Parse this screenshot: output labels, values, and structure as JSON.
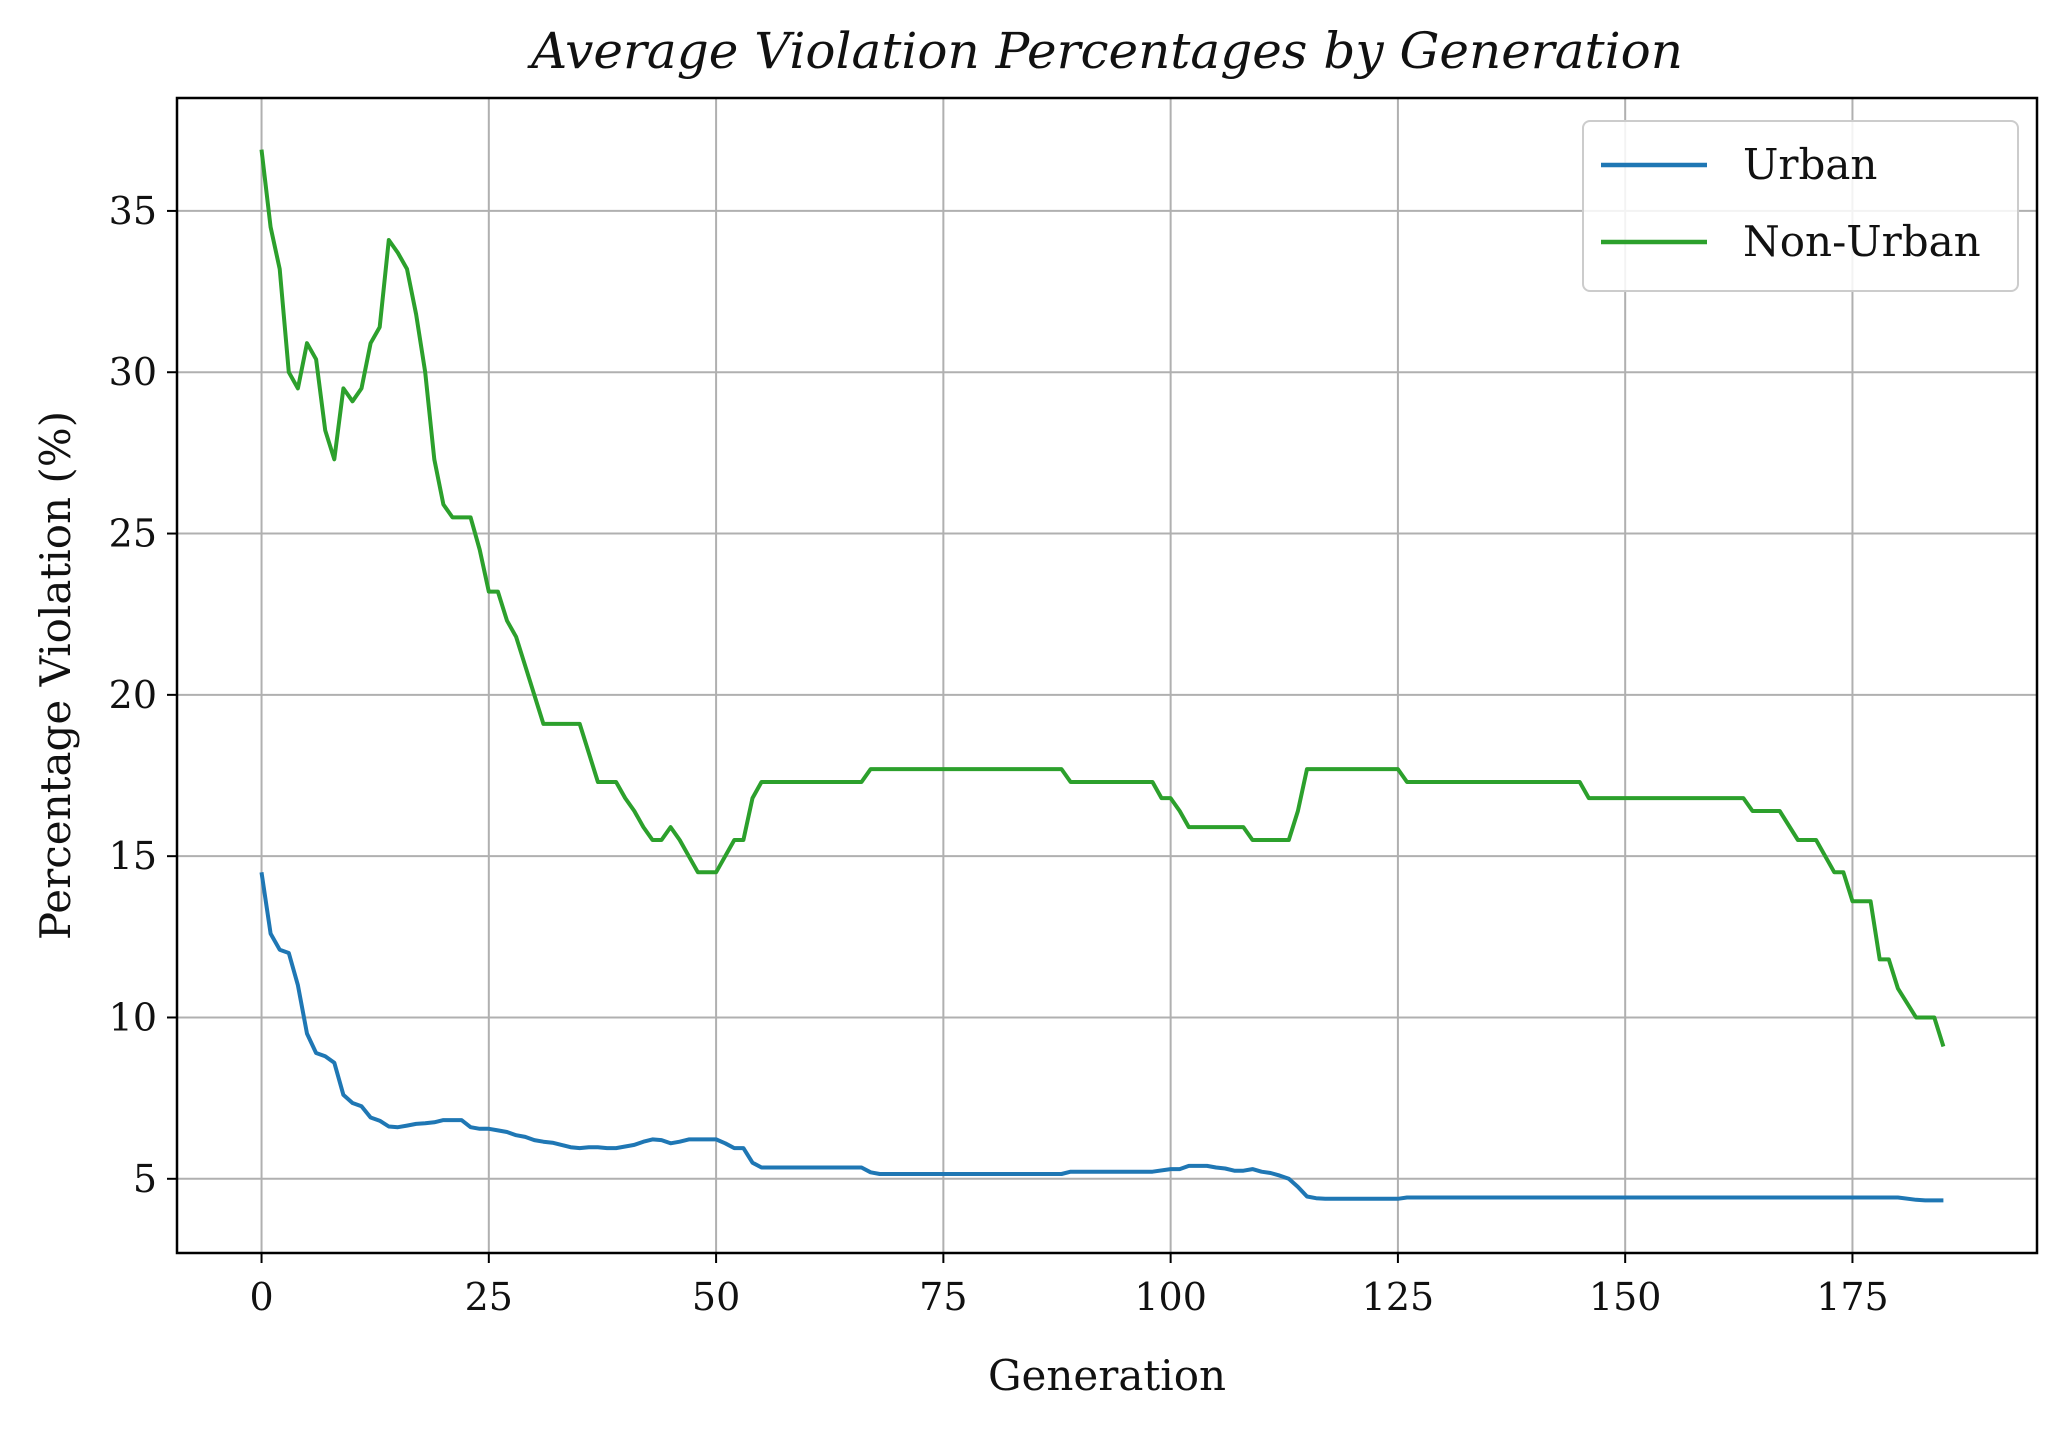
{
  "chart_data": {
    "type": "line",
    "title": "Average Violation Percentages by Generation",
    "xlabel": "Generation",
    "ylabel": "Percentage Violation (%)",
    "xlim": [
      -9.3,
      195.3
    ],
    "ylim": [
      2.7,
      38.5
    ],
    "xticks": [
      0,
      25,
      50,
      75,
      100,
      125,
      150,
      175
    ],
    "yticks": [
      5,
      10,
      15,
      20,
      25,
      30,
      35
    ],
    "grid": true,
    "legend_position": "top-right",
    "series": [
      {
        "name": "Urban",
        "color": "#1f77b4",
        "points": [
          [
            0,
            14.5
          ],
          [
            1,
            12.6
          ],
          [
            2,
            12.1
          ],
          [
            3,
            12.0
          ],
          [
            4,
            11.0
          ],
          [
            5,
            9.5
          ],
          [
            6,
            8.9
          ],
          [
            7,
            8.8
          ],
          [
            8,
            8.6
          ],
          [
            9,
            7.6
          ],
          [
            10,
            7.35
          ],
          [
            11,
            7.25
          ],
          [
            12,
            6.9
          ],
          [
            13,
            6.8
          ],
          [
            14,
            6.62
          ],
          [
            15,
            6.6
          ],
          [
            16,
            6.65
          ],
          [
            17,
            6.7
          ],
          [
            18,
            6.72
          ],
          [
            19,
            6.75
          ],
          [
            20,
            6.82
          ],
          [
            21,
            6.82
          ],
          [
            22,
            6.82
          ],
          [
            23,
            6.6
          ],
          [
            24,
            6.55
          ],
          [
            25,
            6.55
          ],
          [
            26,
            6.5
          ],
          [
            27,
            6.45
          ],
          [
            28,
            6.35
          ],
          [
            29,
            6.3
          ],
          [
            30,
            6.2
          ],
          [
            31,
            6.15
          ],
          [
            32,
            6.12
          ],
          [
            33,
            6.05
          ],
          [
            34,
            5.98
          ],
          [
            35,
            5.95
          ],
          [
            36,
            5.98
          ],
          [
            37,
            5.98
          ],
          [
            38,
            5.95
          ],
          [
            39,
            5.95
          ],
          [
            40,
            6.0
          ],
          [
            41,
            6.05
          ],
          [
            42,
            6.15
          ],
          [
            43,
            6.22
          ],
          [
            44,
            6.2
          ],
          [
            45,
            6.1
          ],
          [
            46,
            6.15
          ],
          [
            47,
            6.22
          ],
          [
            48,
            6.22
          ],
          [
            49,
            6.22
          ],
          [
            50,
            6.22
          ],
          [
            51,
            6.1
          ],
          [
            52,
            5.95
          ],
          [
            53,
            5.95
          ],
          [
            54,
            5.5
          ],
          [
            55,
            5.35
          ],
          [
            60,
            5.35
          ],
          [
            66,
            5.35
          ],
          [
            67,
            5.2
          ],
          [
            68,
            5.15
          ],
          [
            80,
            5.15
          ],
          [
            88,
            5.15
          ],
          [
            89,
            5.22
          ],
          [
            98,
            5.22
          ],
          [
            100,
            5.3
          ],
          [
            101,
            5.3
          ],
          [
            102,
            5.4
          ],
          [
            104,
            5.4
          ],
          [
            105,
            5.35
          ],
          [
            106,
            5.32
          ],
          [
            107,
            5.25
          ],
          [
            108,
            5.25
          ],
          [
            109,
            5.3
          ],
          [
            110,
            5.22
          ],
          [
            111,
            5.18
          ],
          [
            112,
            5.1
          ],
          [
            113,
            5.0
          ],
          [
            114,
            4.75
          ],
          [
            115,
            4.45
          ],
          [
            116,
            4.4
          ],
          [
            117,
            4.38
          ],
          [
            120,
            4.38
          ],
          [
            125,
            4.38
          ],
          [
            126,
            4.42
          ],
          [
            140,
            4.42
          ],
          [
            160,
            4.42
          ],
          [
            180,
            4.42
          ],
          [
            182,
            4.35
          ],
          [
            183,
            4.33
          ],
          [
            185,
            4.33
          ]
        ]
      },
      {
        "name": "Non-Urban",
        "color": "#2ca02c",
        "points": [
          [
            0,
            36.9
          ],
          [
            1,
            34.5
          ],
          [
            2,
            33.2
          ],
          [
            3,
            30.0
          ],
          [
            4,
            29.5
          ],
          [
            5,
            30.9
          ],
          [
            6,
            30.4
          ],
          [
            7,
            28.2
          ],
          [
            8,
            27.3
          ],
          [
            9,
            29.5
          ],
          [
            10,
            29.1
          ],
          [
            11,
            29.5
          ],
          [
            12,
            30.9
          ],
          [
            13,
            31.4
          ],
          [
            14,
            34.1
          ],
          [
            15,
            33.7
          ],
          [
            16,
            33.2
          ],
          [
            17,
            31.8
          ],
          [
            18,
            30.0
          ],
          [
            19,
            27.3
          ],
          [
            20,
            25.9
          ],
          [
            21,
            25.5
          ],
          [
            22,
            25.5
          ],
          [
            23,
            25.5
          ],
          [
            24,
            24.5
          ],
          [
            25,
            23.2
          ],
          [
            26,
            23.2
          ],
          [
            27,
            22.3
          ],
          [
            28,
            21.8
          ],
          [
            29,
            20.9
          ],
          [
            30,
            20.0
          ],
          [
            31,
            19.1
          ],
          [
            32,
            19.1
          ],
          [
            33,
            19.1
          ],
          [
            34,
            19.1
          ],
          [
            35,
            19.1
          ],
          [
            36,
            18.2
          ],
          [
            37,
            17.3
          ],
          [
            38,
            17.3
          ],
          [
            39,
            17.3
          ],
          [
            40,
            16.8
          ],
          [
            41,
            16.4
          ],
          [
            42,
            15.9
          ],
          [
            43,
            15.5
          ],
          [
            44,
            15.5
          ],
          [
            45,
            15.9
          ],
          [
            46,
            15.5
          ],
          [
            47,
            15.0
          ],
          [
            48,
            14.5
          ],
          [
            49,
            14.5
          ],
          [
            50,
            14.5
          ],
          [
            51,
            15.0
          ],
          [
            52,
            15.5
          ],
          [
            53,
            15.5
          ],
          [
            54,
            16.8
          ],
          [
            55,
            17.3
          ],
          [
            60,
            17.3
          ],
          [
            66,
            17.3
          ],
          [
            67,
            17.7
          ],
          [
            80,
            17.7
          ],
          [
            88,
            17.7
          ],
          [
            89,
            17.3
          ],
          [
            98,
            17.3
          ],
          [
            99,
            16.8
          ],
          [
            100,
            16.8
          ],
          [
            101,
            16.4
          ],
          [
            102,
            15.9
          ],
          [
            103,
            15.9
          ],
          [
            108,
            15.9
          ],
          [
            109,
            15.5
          ],
          [
            110,
            15.5
          ],
          [
            113,
            15.5
          ],
          [
            114,
            16.4
          ],
          [
            115,
            17.7
          ],
          [
            125,
            17.7
          ],
          [
            126,
            17.3
          ],
          [
            145,
            17.3
          ],
          [
            146,
            16.8
          ],
          [
            162,
            16.8
          ],
          [
            163,
            16.8
          ],
          [
            164,
            16.4
          ],
          [
            167,
            16.4
          ],
          [
            169,
            15.5
          ],
          [
            171,
            15.5
          ],
          [
            173,
            14.5
          ],
          [
            174,
            14.5
          ],
          [
            175,
            13.6
          ],
          [
            176,
            13.6
          ],
          [
            177,
            13.6
          ],
          [
            178,
            11.8
          ],
          [
            179,
            11.8
          ],
          [
            180,
            10.9
          ],
          [
            182,
            10.0
          ],
          [
            184,
            10.0
          ],
          [
            185,
            9.1
          ]
        ]
      }
    ]
  }
}
